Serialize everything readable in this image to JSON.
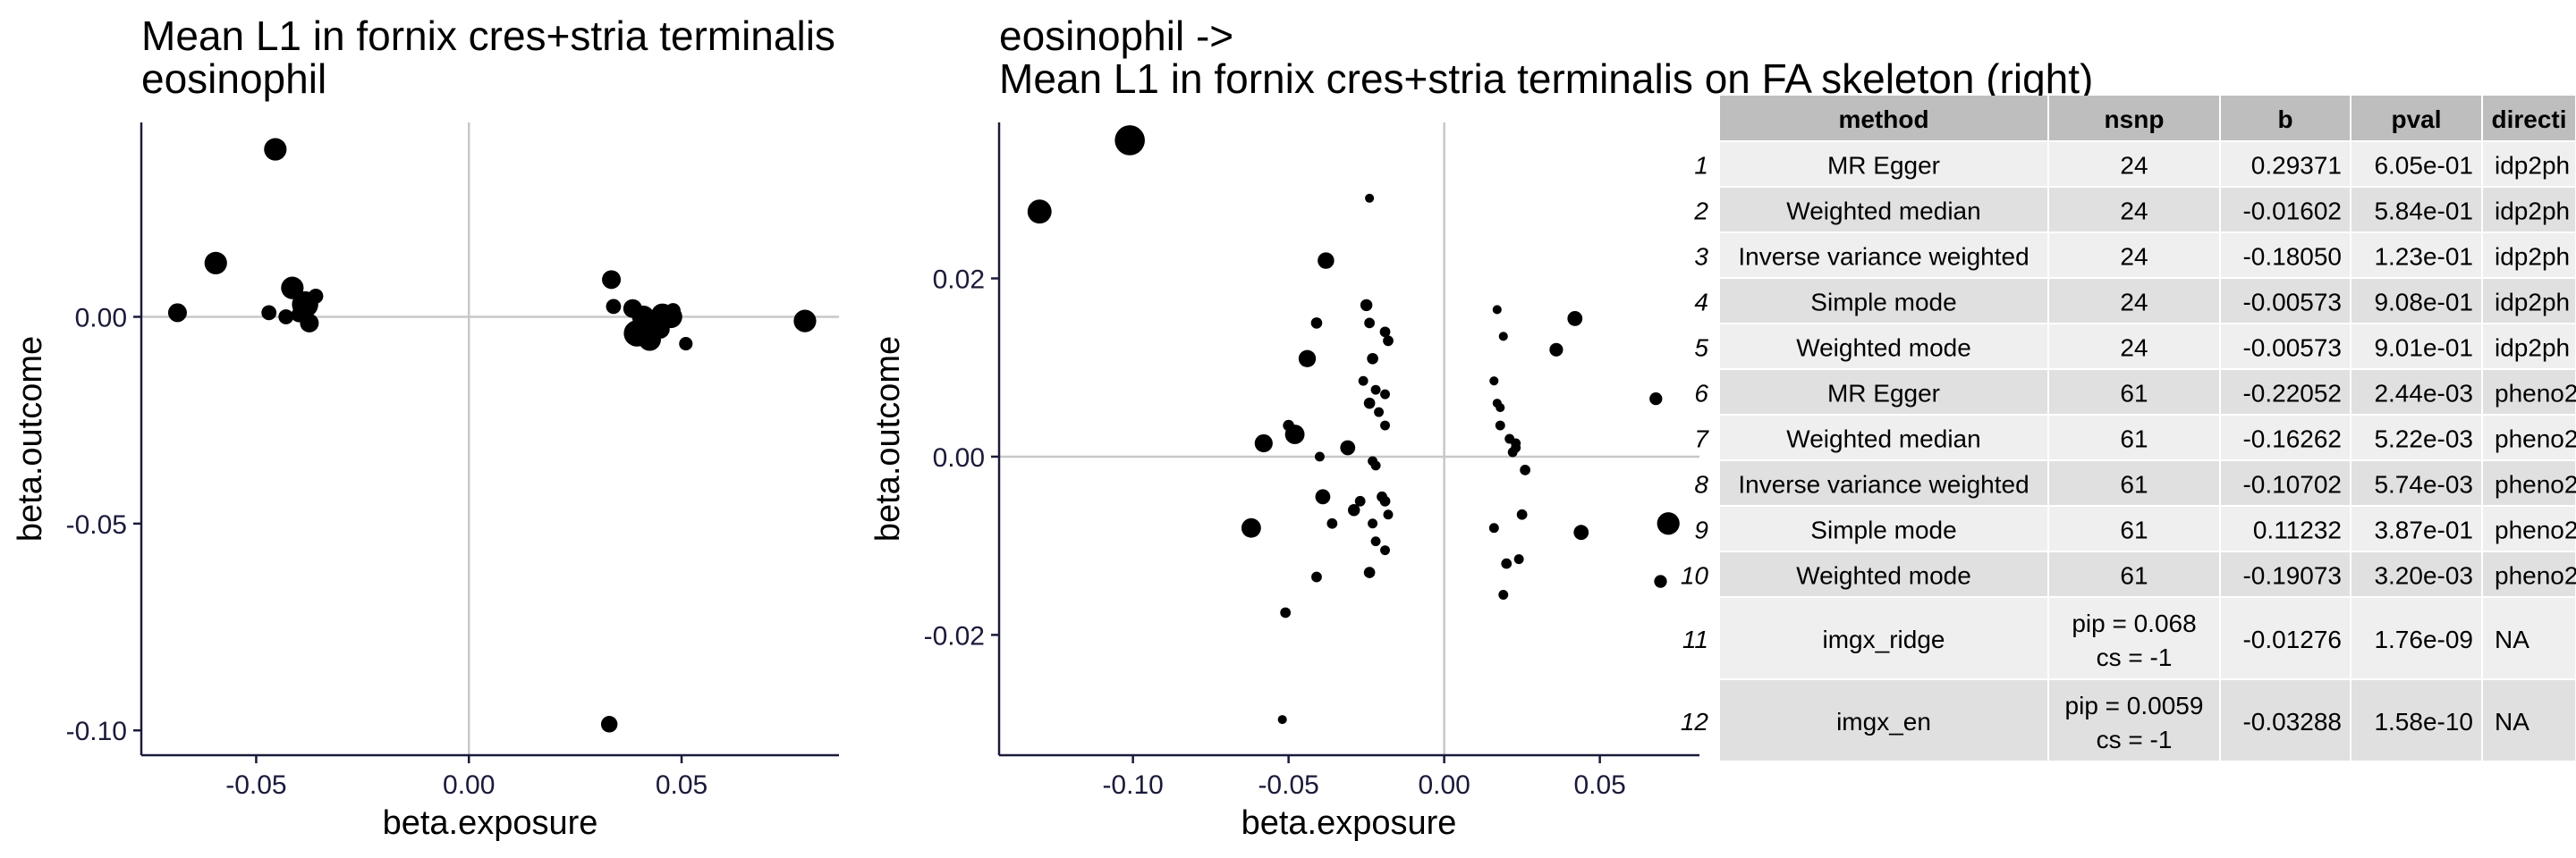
{
  "chart_data": [
    {
      "type": "scatter",
      "title_line1": "Mean L1 in fornix cres+stria terminalis",
      "title_line2": " eosinophil",
      "xlabel": "beta.exposure",
      "ylabel": "beta.outcome",
      "xlim": [
        -0.077,
        0.087
      ],
      "ylim": [
        -0.106,
        0.047
      ],
      "xticks": [
        {
          "v": -0.05,
          "label": "-0.05"
        },
        {
          "v": 0.0,
          "label": "0.00"
        },
        {
          "v": 0.05,
          "label": "0.05"
        }
      ],
      "yticks": [
        {
          "v": 0.0,
          "label": "0.00"
        },
        {
          "v": -0.05,
          "label": "-0.05"
        },
        {
          "v": -0.1,
          "label": "-0.10"
        }
      ],
      "points": [
        {
          "x": -0.0455,
          "y": 0.0405,
          "s": 3
        },
        {
          "x": -0.0595,
          "y": 0.013,
          "s": 3
        },
        {
          "x": -0.0685,
          "y": 0.001,
          "s": 2.5
        },
        {
          "x": -0.047,
          "y": 0.001,
          "s": 2
        },
        {
          "x": -0.0415,
          "y": 0.007,
          "s": 3
        },
        {
          "x": -0.0385,
          "y": 0.003,
          "s": 3.5
        },
        {
          "x": -0.036,
          "y": 0.005,
          "s": 2
        },
        {
          "x": -0.04,
          "y": 0.0005,
          "s": 2
        },
        {
          "x": -0.0375,
          "y": -0.0015,
          "s": 2.5
        },
        {
          "x": -0.043,
          "y": 0.0,
          "s": 2
        },
        {
          "x": 0.0335,
          "y": 0.009,
          "s": 2.5
        },
        {
          "x": 0.034,
          "y": 0.0025,
          "s": 2
        },
        {
          "x": 0.0385,
          "y": 0.002,
          "s": 2.5
        },
        {
          "x": 0.041,
          "y": 0.0,
          "s": 3
        },
        {
          "x": 0.043,
          "y": -0.002,
          "s": 4
        },
        {
          "x": 0.0455,
          "y": 0.0005,
          "s": 3
        },
        {
          "x": 0.0475,
          "y": 0.0,
          "s": 3
        },
        {
          "x": 0.0395,
          "y": -0.004,
          "s": 3.5
        },
        {
          "x": 0.0425,
          "y": -0.0055,
          "s": 3
        },
        {
          "x": 0.045,
          "y": -0.003,
          "s": 2.5
        },
        {
          "x": 0.051,
          "y": -0.0065,
          "s": 1.8
        },
        {
          "x": 0.079,
          "y": -0.001,
          "s": 3
        },
        {
          "x": 0.048,
          "y": 0.0015,
          "s": 2
        },
        {
          "x": 0.033,
          "y": -0.0985,
          "s": 2.2
        }
      ]
    },
    {
      "type": "scatter",
      "title_line1": "eosinophil ->",
      "title_line2": " Mean L1 in fornix cres+stria terminalis on FA skeleton (right)",
      "xlabel": "beta.exposure",
      "ylabel": "beta.outcome",
      "xlim": [
        -0.143,
        0.082
      ],
      "ylim": [
        -0.0335,
        0.0375
      ],
      "xticks": [
        {
          "v": -0.1,
          "label": "-0.10"
        },
        {
          "v": -0.05,
          "label": "-0.05"
        },
        {
          "v": 0.0,
          "label": "0.00"
        },
        {
          "v": 0.05,
          "label": "0.05"
        }
      ],
      "yticks": [
        {
          "v": 0.02,
          "label": "0.02"
        },
        {
          "v": 0.0,
          "label": "0.00"
        },
        {
          "v": -0.02,
          "label": "-0.02"
        }
      ],
      "points": [
        {
          "x": -0.101,
          "y": 0.0355,
          "s": 4
        },
        {
          "x": -0.13,
          "y": 0.0275,
          "s": 3.2
        },
        {
          "x": -0.038,
          "y": 0.022,
          "s": 2.2
        },
        {
          "x": -0.024,
          "y": 0.029,
          "s": 1.2
        },
        {
          "x": -0.041,
          "y": 0.015,
          "s": 1.5
        },
        {
          "x": -0.044,
          "y": 0.011,
          "s": 2.3
        },
        {
          "x": -0.025,
          "y": 0.017,
          "s": 1.6
        },
        {
          "x": -0.024,
          "y": 0.015,
          "s": 1.4
        },
        {
          "x": -0.019,
          "y": 0.014,
          "s": 1.4
        },
        {
          "x": -0.018,
          "y": 0.013,
          "s": 1.4
        },
        {
          "x": -0.023,
          "y": 0.011,
          "s": 1.5
        },
        {
          "x": -0.026,
          "y": 0.0085,
          "s": 1.3
        },
        {
          "x": -0.022,
          "y": 0.0075,
          "s": 1.3
        },
        {
          "x": -0.019,
          "y": 0.007,
          "s": 1.3
        },
        {
          "x": -0.024,
          "y": 0.006,
          "s": 1.5
        },
        {
          "x": -0.021,
          "y": 0.005,
          "s": 1.3
        },
        {
          "x": -0.019,
          "y": 0.0035,
          "s": 1.3
        },
        {
          "x": -0.058,
          "y": 0.0015,
          "s": 2.4
        },
        {
          "x": -0.048,
          "y": 0.0025,
          "s": 2.6
        },
        {
          "x": -0.05,
          "y": 0.0035,
          "s": 1.5
        },
        {
          "x": -0.031,
          "y": 0.001,
          "s": 2.0
        },
        {
          "x": -0.04,
          "y": 0.0,
          "s": 1.3
        },
        {
          "x": -0.023,
          "y": -0.0005,
          "s": 1.3
        },
        {
          "x": -0.022,
          "y": -0.001,
          "s": 1.3
        },
        {
          "x": -0.062,
          "y": -0.008,
          "s": 2.6
        },
        {
          "x": -0.039,
          "y": -0.0045,
          "s": 2.0
        },
        {
          "x": -0.036,
          "y": -0.0075,
          "s": 1.4
        },
        {
          "x": -0.029,
          "y": -0.006,
          "s": 1.6
        },
        {
          "x": -0.027,
          "y": -0.005,
          "s": 1.4
        },
        {
          "x": -0.02,
          "y": -0.0045,
          "s": 1.4
        },
        {
          "x": -0.019,
          "y": -0.005,
          "s": 1.4
        },
        {
          "x": -0.018,
          "y": -0.0065,
          "s": 1.3
        },
        {
          "x": -0.023,
          "y": -0.0075,
          "s": 1.3
        },
        {
          "x": -0.022,
          "y": -0.0095,
          "s": 1.3
        },
        {
          "x": -0.019,
          "y": -0.0105,
          "s": 1.3
        },
        {
          "x": -0.041,
          "y": -0.0135,
          "s": 1.4
        },
        {
          "x": -0.024,
          "y": -0.013,
          "s": 1.5
        },
        {
          "x": -0.051,
          "y": -0.0175,
          "s": 1.4
        },
        {
          "x": -0.052,
          "y": -0.0295,
          "s": 1.2
        },
        {
          "x": 0.017,
          "y": 0.0165,
          "s": 1.2
        },
        {
          "x": 0.019,
          "y": 0.0135,
          "s": 1.2
        },
        {
          "x": 0.036,
          "y": 0.012,
          "s": 1.8
        },
        {
          "x": 0.042,
          "y": 0.0155,
          "s": 2.0
        },
        {
          "x": 0.016,
          "y": 0.0085,
          "s": 1.2
        },
        {
          "x": 0.017,
          "y": 0.006,
          "s": 1.2
        },
        {
          "x": 0.018,
          "y": 0.0035,
          "s": 1.3
        },
        {
          "x": 0.021,
          "y": 0.002,
          "s": 1.3
        },
        {
          "x": 0.023,
          "y": 0.0015,
          "s": 1.3
        },
        {
          "x": 0.022,
          "y": 0.0005,
          "s": 1.3
        },
        {
          "x": 0.026,
          "y": -0.0015,
          "s": 1.4
        },
        {
          "x": 0.025,
          "y": -0.0065,
          "s": 1.4
        },
        {
          "x": 0.016,
          "y": -0.008,
          "s": 1.3
        },
        {
          "x": 0.02,
          "y": -0.012,
          "s": 1.4
        },
        {
          "x": 0.024,
          "y": -0.0115,
          "s": 1.3
        },
        {
          "x": 0.019,
          "y": -0.0155,
          "s": 1.3
        },
        {
          "x": 0.044,
          "y": -0.0085,
          "s": 2.0
        },
        {
          "x": 0.068,
          "y": 0.0065,
          "s": 1.7
        },
        {
          "x": 0.072,
          "y": -0.0075,
          "s": 3.0
        },
        {
          "x": 0.0695,
          "y": -0.014,
          "s": 1.7
        },
        {
          "x": 0.023,
          "y": 0.001,
          "s": 1.3
        },
        {
          "x": 0.018,
          "y": 0.0055,
          "s": 1.2
        }
      ]
    },
    {
      "type": "table",
      "headers": [
        "method",
        "nsnp",
        "b",
        "pval",
        "directi"
      ],
      "rows": [
        {
          "id": "1",
          "method": "MR Egger",
          "nsnp": [
            "24"
          ],
          "b": "0.29371",
          "pval": "6.05e-01",
          "dir": "idp2ph"
        },
        {
          "id": "2",
          "method": "Weighted median",
          "nsnp": [
            "24"
          ],
          "b": "-0.01602",
          "pval": "5.84e-01",
          "dir": "idp2ph"
        },
        {
          "id": "3",
          "method": "Inverse variance weighted",
          "nsnp": [
            "24"
          ],
          "b": "-0.18050",
          "pval": "1.23e-01",
          "dir": "idp2ph"
        },
        {
          "id": "4",
          "method": "Simple mode",
          "nsnp": [
            "24"
          ],
          "b": "-0.00573",
          "pval": "9.08e-01",
          "dir": "idp2ph"
        },
        {
          "id": "5",
          "method": "Weighted mode",
          "nsnp": [
            "24"
          ],
          "b": "-0.00573",
          "pval": "9.01e-01",
          "dir": "idp2ph"
        },
        {
          "id": "6",
          "method": "MR Egger",
          "nsnp": [
            "61"
          ],
          "b": "-0.22052",
          "pval": "2.44e-03",
          "dir": "pheno2"
        },
        {
          "id": "7",
          "method": "Weighted median",
          "nsnp": [
            "61"
          ],
          "b": "-0.16262",
          "pval": "5.22e-03",
          "dir": "pheno2"
        },
        {
          "id": "8",
          "method": "Inverse variance weighted",
          "nsnp": [
            "61"
          ],
          "b": "-0.10702",
          "pval": "5.74e-03",
          "dir": "pheno2"
        },
        {
          "id": "9",
          "method": "Simple mode",
          "nsnp": [
            "61"
          ],
          "b": "0.11232",
          "pval": "3.87e-01",
          "dir": "pheno2"
        },
        {
          "id": "10",
          "method": "Weighted mode",
          "nsnp": [
            "61"
          ],
          "b": "-0.19073",
          "pval": "3.20e-03",
          "dir": "pheno2"
        },
        {
          "id": "11",
          "method": "imgx_ridge",
          "nsnp": [
            "pip = 0.068",
            "cs = -1"
          ],
          "b": "-0.01276",
          "pval": "1.76e-09",
          "dir": "NA"
        },
        {
          "id": "12",
          "method": "imgx_en",
          "nsnp": [
            "pip = 0.0059",
            "cs = -1"
          ],
          "b": "-0.03288",
          "pval": "1.58e-10",
          "dir": "NA"
        }
      ]
    }
  ]
}
